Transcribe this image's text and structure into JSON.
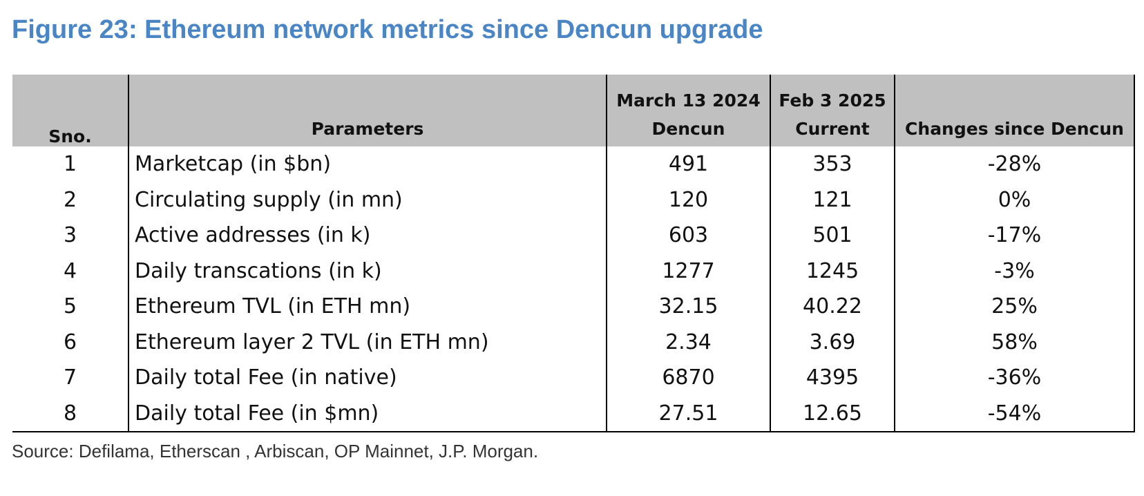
{
  "figure": {
    "title": "Figure 23: Ethereum network metrics since Dencun upgrade",
    "title_color": "#4a86c5",
    "source": "Source: Defilama, Etherscan , Arbiscan, OP Mainnet, J.P. Morgan."
  },
  "table": {
    "header_bg": "#c0c0c0",
    "headers": {
      "sno": "Sno.",
      "parameters": "Parameters",
      "dencun_date": "March 13 2024",
      "dencun_label": "Dencun",
      "current_date": "Feb 3 2025",
      "current_label": "Current",
      "changes": "Changes since Dencun"
    },
    "rows": [
      {
        "sno": "1",
        "parameter": "Marketcap (in $bn)",
        "dencun": "491",
        "current": "353",
        "change": "-28%"
      },
      {
        "sno": "2",
        "parameter": "Circulating supply (in mn)",
        "dencun": "120",
        "current": "121",
        "change": "0%"
      },
      {
        "sno": "3",
        "parameter": "Active addresses (in k)",
        "dencun": "603",
        "current": "501",
        "change": "-17%"
      },
      {
        "sno": "4",
        "parameter": "Daily transcations (in k)",
        "dencun": "1277",
        "current": "1245",
        "change": "-3%"
      },
      {
        "sno": "5",
        "parameter": "Ethereum TVL (in ETH mn)",
        "dencun": "32.15",
        "current": "40.22",
        "change": "25%"
      },
      {
        "sno": "6",
        "parameter": "Ethereum layer 2 TVL (in ETH mn)",
        "dencun": "2.34",
        "current": "3.69",
        "change": "58%"
      },
      {
        "sno": "7",
        "parameter": "Daily total Fee (in native)",
        "dencun": "6870",
        "current": "4395",
        "change": "-36%"
      },
      {
        "sno": "8",
        "parameter": "Daily total Fee (in $mn)",
        "dencun": "27.51",
        "current": "12.65",
        "change": "-54%"
      }
    ]
  }
}
